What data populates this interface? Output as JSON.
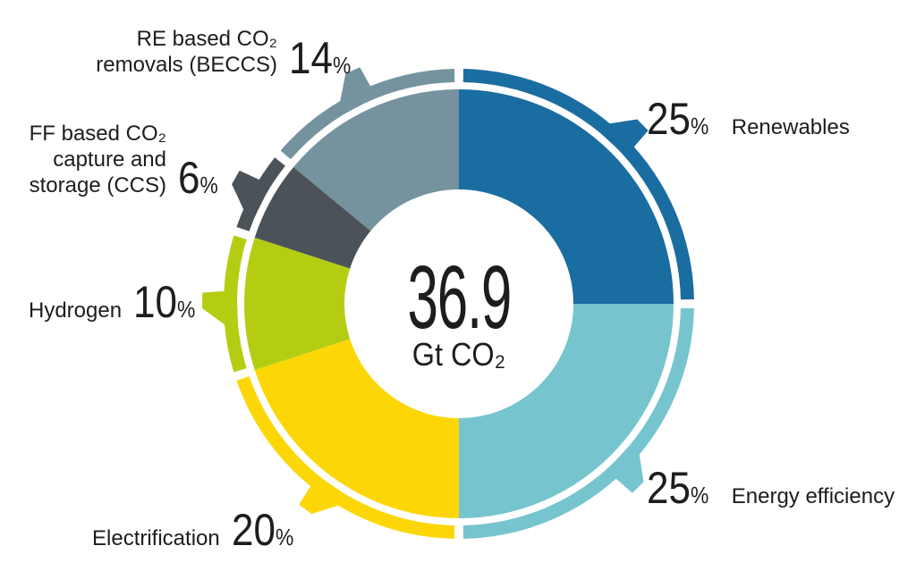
{
  "chart_data": {
    "type": "pie",
    "subtype": "donut",
    "title": "",
    "unit": "%",
    "direction": "clockwise",
    "start_angle_deg": 0,
    "center": {
      "value": "36.9",
      "unit": "Gt CO₂"
    },
    "segments": [
      {
        "id": "renewables",
        "label": "Renewables",
        "value": 25,
        "color": "#1a6da1"
      },
      {
        "id": "energy-efficiency",
        "label": "Energy efficiency",
        "value": 25,
        "color": "#76c5ce"
      },
      {
        "id": "electrification",
        "label": "Electrification",
        "value": 20,
        "color": "#fcd705"
      },
      {
        "id": "hydrogen",
        "label": "Hydrogen",
        "value": 10,
        "color": "#b4cd13"
      },
      {
        "id": "ccs",
        "label": "FF based CO₂ capture and storage (CCS)",
        "value": 6,
        "color": "#4b5358"
      },
      {
        "id": "beccs",
        "label": "RE based CO₂ removals (BECCS)",
        "value": 14,
        "color": "#75929f"
      }
    ]
  },
  "labels": {
    "percent_sign": "%",
    "renewables": {
      "pct": "25",
      "text": "Renewables"
    },
    "energy_efficiency": {
      "pct": "25",
      "text": "Energy efficiency"
    },
    "electrification": {
      "pct": "20",
      "text": "Electrification"
    },
    "hydrogen": {
      "pct": "10",
      "text": "Hydrogen"
    },
    "ccs": {
      "pct": "6",
      "text": "FF based CO₂\ncapture and\nstorage (CCS)"
    },
    "beccs": {
      "pct": "14",
      "text": "RE based CO₂\nremovals (BECCS)"
    }
  }
}
